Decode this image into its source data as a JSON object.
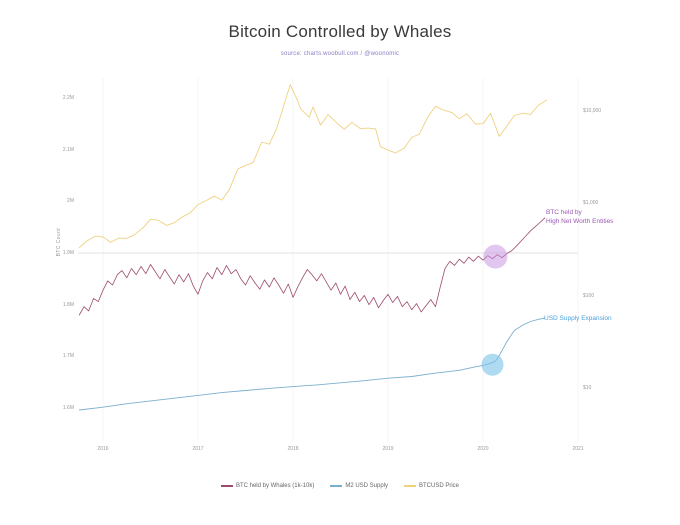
{
  "chart_data": {
    "type": "line",
    "title": "Bitcoin Controlled by Whales",
    "subtitle": "source: charts.woobull.com / @woonomic",
    "x_axis": {
      "domain": [
        2016,
        2021
      ],
      "range": [
        25,
        500
      ],
      "ticks": [
        {
          "v": 2016,
          "label": "2016"
        },
        {
          "v": 2017,
          "label": "2017"
        },
        {
          "v": 2018,
          "label": "2018"
        },
        {
          "v": 2019,
          "label": "2019"
        },
        {
          "v": 2020,
          "label": "2020"
        },
        {
          "v": 2021,
          "label": "2021"
        }
      ]
    },
    "left_axis": {
      "title": "BTC Count",
      "type": "linear",
      "domain": [
        1.6,
        2.2
      ],
      "range": [
        330,
        20
      ],
      "ticks": [
        {
          "v": 2.2,
          "label": "2.2M"
        },
        {
          "v": 2.1,
          "label": "2.1M"
        },
        {
          "v": 2.0,
          "label": "2M"
        },
        {
          "v": 1.9,
          "label": "1.9M"
        },
        {
          "v": 1.8,
          "label": "1.8M"
        },
        {
          "v": 1.7,
          "label": "1.7M"
        },
        {
          "v": 1.6,
          "label": "1.6M"
        }
      ]
    },
    "right_axis": {
      "title": "BTCUSD Price",
      "type": "log",
      "domain": [
        100,
        10000
      ],
      "range": [
        217.6,
        32.8
      ],
      "ticks": [
        {
          "v": 10000,
          "label": "$10,000"
        },
        {
          "v": 1000,
          "label": "$1,000"
        },
        {
          "v": 100,
          "label": "$100"
        },
        {
          "v": 10,
          "label": "$10"
        }
      ]
    },
    "m2_axis": {
      "title": "M2 USD Supply ($T)",
      "type": "linear",
      "domain": [
        12.2,
        18.8
      ],
      "range": [
        332,
        240
      ],
      "ticks": []
    },
    "gridline": {
      "axis": "left_axis",
      "value": 1.9
    },
    "series": [
      {
        "name": "BTC held by Whales (1k-10k)",
        "axis": "left_axis",
        "color": "#9e4a6e",
        "stroke_width": 0.8,
        "points": [
          [
            2015.75,
            1.78
          ],
          [
            2015.8,
            1.796
          ],
          [
            2015.85,
            1.788
          ],
          [
            2015.9,
            1.812
          ],
          [
            2015.95,
            1.806
          ],
          [
            2016.0,
            1.828
          ],
          [
            2016.05,
            1.846
          ],
          [
            2016.1,
            1.838
          ],
          [
            2016.15,
            1.858
          ],
          [
            2016.2,
            1.866
          ],
          [
            2016.25,
            1.852
          ],
          [
            2016.3,
            1.87
          ],
          [
            2016.35,
            1.858
          ],
          [
            2016.4,
            1.874
          ],
          [
            2016.45,
            1.86
          ],
          [
            2016.5,
            1.878
          ],
          [
            2016.55,
            1.864
          ],
          [
            2016.6,
            1.85
          ],
          [
            2016.65,
            1.868
          ],
          [
            2016.7,
            1.854
          ],
          [
            2016.75,
            1.84
          ],
          [
            2016.8,
            1.858
          ],
          [
            2016.85,
            1.844
          ],
          [
            2016.9,
            1.86
          ],
          [
            2016.95,
            1.836
          ],
          [
            2017.0,
            1.82
          ],
          [
            2017.05,
            1.846
          ],
          [
            2017.1,
            1.862
          ],
          [
            2017.15,
            1.85
          ],
          [
            2017.2,
            1.872
          ],
          [
            2017.25,
            1.858
          ],
          [
            2017.3,
            1.876
          ],
          [
            2017.35,
            1.86
          ],
          [
            2017.4,
            1.868
          ],
          [
            2017.45,
            1.85
          ],
          [
            2017.5,
            1.838
          ],
          [
            2017.55,
            1.856
          ],
          [
            2017.6,
            1.842
          ],
          [
            2017.65,
            1.83
          ],
          [
            2017.7,
            1.848
          ],
          [
            2017.75,
            1.834
          ],
          [
            2017.8,
            1.852
          ],
          [
            2017.85,
            1.838
          ],
          [
            2017.9,
            1.822
          ],
          [
            2017.95,
            1.84
          ],
          [
            2018.0,
            1.814
          ],
          [
            2018.05,
            1.834
          ],
          [
            2018.1,
            1.852
          ],
          [
            2018.15,
            1.868
          ],
          [
            2018.2,
            1.858
          ],
          [
            2018.25,
            1.846
          ],
          [
            2018.3,
            1.86
          ],
          [
            2018.35,
            1.844
          ],
          [
            2018.4,
            1.828
          ],
          [
            2018.45,
            1.842
          ],
          [
            2018.5,
            1.82
          ],
          [
            2018.55,
            1.836
          ],
          [
            2018.6,
            1.81
          ],
          [
            2018.65,
            1.824
          ],
          [
            2018.7,
            1.806
          ],
          [
            2018.75,
            1.818
          ],
          [
            2018.8,
            1.8
          ],
          [
            2018.85,
            1.814
          ],
          [
            2018.9,
            1.794
          ],
          [
            2018.95,
            1.808
          ],
          [
            2019.0,
            1.82
          ],
          [
            2019.05,
            1.804
          ],
          [
            2019.1,
            1.816
          ],
          [
            2019.15,
            1.796
          ],
          [
            2019.2,
            1.806
          ],
          [
            2019.25,
            1.79
          ],
          [
            2019.3,
            1.802
          ],
          [
            2019.35,
            1.786
          ],
          [
            2019.4,
            1.798
          ],
          [
            2019.45,
            1.81
          ],
          [
            2019.5,
            1.796
          ],
          [
            2019.55,
            1.834
          ],
          [
            2019.6,
            1.87
          ],
          [
            2019.65,
            1.884
          ],
          [
            2019.7,
            1.876
          ],
          [
            2019.75,
            1.888
          ],
          [
            2019.8,
            1.88
          ],
          [
            2019.85,
            1.892
          ],
          [
            2019.9,
            1.884
          ],
          [
            2019.95,
            1.894
          ],
          [
            2020.0,
            1.886
          ],
          [
            2020.05,
            1.895
          ],
          [
            2020.1,
            1.889
          ],
          [
            2020.15,
            1.897
          ],
          [
            2020.2,
            1.891
          ],
          [
            2020.25,
            1.899
          ],
          [
            2020.3,
            1.904
          ],
          [
            2020.35,
            1.913
          ],
          [
            2020.4,
            1.923
          ],
          [
            2020.45,
            1.933
          ],
          [
            2020.5,
            1.943
          ],
          [
            2020.55,
            1.951
          ],
          [
            2020.6,
            1.959
          ],
          [
            2020.65,
            1.968
          ]
        ]
      },
      {
        "name": "M2 USD Supply",
        "axis": "m2_axis",
        "color": "#7ab0cf",
        "stroke_width": 0.9,
        "points": [
          [
            2015.75,
            12.2
          ],
          [
            2016.0,
            12.4
          ],
          [
            2016.25,
            12.65
          ],
          [
            2016.5,
            12.85
          ],
          [
            2016.75,
            13.05
          ],
          [
            2017.0,
            13.25
          ],
          [
            2017.25,
            13.45
          ],
          [
            2017.5,
            13.6
          ],
          [
            2017.75,
            13.75
          ],
          [
            2018.0,
            13.88
          ],
          [
            2018.25,
            14.0
          ],
          [
            2018.5,
            14.15
          ],
          [
            2018.75,
            14.3
          ],
          [
            2019.0,
            14.48
          ],
          [
            2019.25,
            14.6
          ],
          [
            2019.5,
            14.85
          ],
          [
            2019.75,
            15.05
          ],
          [
            2019.92,
            15.3
          ],
          [
            2020.0,
            15.4
          ],
          [
            2020.08,
            15.55
          ],
          [
            2020.13,
            15.7
          ],
          [
            2020.17,
            16.1
          ],
          [
            2020.21,
            16.6
          ],
          [
            2020.25,
            17.1
          ],
          [
            2020.33,
            17.9
          ],
          [
            2020.42,
            18.3
          ],
          [
            2020.5,
            18.55
          ],
          [
            2020.58,
            18.7
          ],
          [
            2020.65,
            18.8
          ]
        ]
      },
      {
        "name": "BTCUSD Price",
        "axis": "right_axis",
        "color": "#efd180",
        "stroke_width": 0.9,
        "points": [
          [
            2015.75,
            330
          ],
          [
            2015.83,
            390
          ],
          [
            2015.92,
            440
          ],
          [
            2016.0,
            432
          ],
          [
            2016.08,
            378
          ],
          [
            2016.17,
            420
          ],
          [
            2016.25,
            416
          ],
          [
            2016.33,
            455
          ],
          [
            2016.42,
            540
          ],
          [
            2016.5,
            670
          ],
          [
            2016.58,
            655
          ],
          [
            2016.67,
            575
          ],
          [
            2016.75,
            615
          ],
          [
            2016.83,
            705
          ],
          [
            2016.92,
            790
          ],
          [
            2017.0,
            965
          ],
          [
            2017.08,
            1060
          ],
          [
            2017.17,
            1190
          ],
          [
            2017.25,
            1080
          ],
          [
            2017.33,
            1400
          ],
          [
            2017.42,
            2350
          ],
          [
            2017.5,
            2550
          ],
          [
            2017.58,
            2750
          ],
          [
            2017.67,
            4600
          ],
          [
            2017.75,
            4350
          ],
          [
            2017.83,
            6500
          ],
          [
            2017.92,
            13000
          ],
          [
            2017.97,
            19200
          ],
          [
            2018.04,
            13500
          ],
          [
            2018.08,
            10500
          ],
          [
            2018.17,
            8500
          ],
          [
            2018.21,
            11000
          ],
          [
            2018.29,
            7000
          ],
          [
            2018.37,
            9100
          ],
          [
            2018.46,
            7400
          ],
          [
            2018.54,
            6300
          ],
          [
            2018.62,
            7500
          ],
          [
            2018.71,
            6400
          ],
          [
            2018.79,
            6500
          ],
          [
            2018.87,
            6350
          ],
          [
            2018.92,
            4100
          ],
          [
            2019.0,
            3750
          ],
          [
            2019.08,
            3500
          ],
          [
            2019.17,
            3950
          ],
          [
            2019.25,
            5150
          ],
          [
            2019.33,
            5600
          ],
          [
            2019.42,
            8600
          ],
          [
            2019.5,
            11200
          ],
          [
            2019.58,
            10200
          ],
          [
            2019.67,
            9600
          ],
          [
            2019.75,
            8200
          ],
          [
            2019.83,
            9300
          ],
          [
            2019.92,
            7200
          ],
          [
            2020.0,
            7250
          ],
          [
            2020.08,
            9400
          ],
          [
            2020.17,
            5300
          ],
          [
            2020.25,
            6800
          ],
          [
            2020.33,
            8900
          ],
          [
            2020.42,
            9400
          ],
          [
            2020.5,
            9150
          ],
          [
            2020.58,
            11400
          ],
          [
            2020.67,
            13100
          ]
        ]
      }
    ],
    "highlights": [
      {
        "name": "whale-accumulation-highlight",
        "axis": "left_axis",
        "x": 2020.13,
        "value": 1.893,
        "r": 12,
        "color": "#c48fe0",
        "opacity": 0.5
      },
      {
        "name": "usd-expansion-highlight",
        "axis": "m2_axis",
        "x": 2020.1,
        "value": 15.45,
        "r": 11,
        "color": "#79c3ea",
        "opacity": 0.6
      }
    ],
    "annotations": [
      {
        "line1": "BTC held by",
        "line2": "High Net Worth Entities",
        "color": "#9b59b6"
      },
      {
        "line1": "USD Supply Expansion",
        "line2": "",
        "color": "#4a9fd8"
      }
    ],
    "legend_position": "bottom-center",
    "grid": "minimal"
  }
}
